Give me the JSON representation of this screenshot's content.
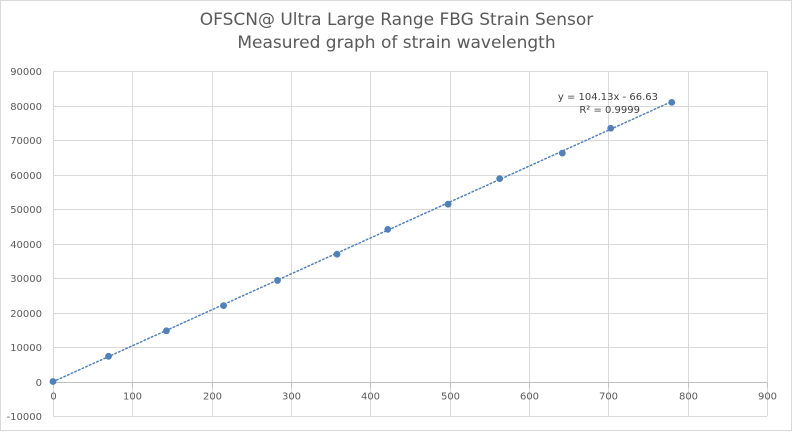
{
  "chart_data": {
    "type": "scatter",
    "title_lines": [
      "OFSCN@ Ultra Large Range FBG Strain Sensor",
      "Measured graph of strain wavelength"
    ],
    "xlabel": "",
    "ylabel": "",
    "xlim": [
      0,
      900
    ],
    "ylim": [
      -10000,
      90000
    ],
    "x_ticks": [
      0,
      100,
      200,
      300,
      400,
      500,
      600,
      700,
      800,
      900
    ],
    "y_ticks": [
      -10000,
      0,
      10000,
      20000,
      30000,
      40000,
      50000,
      60000,
      70000,
      80000,
      90000
    ],
    "grid": true,
    "legend": "none",
    "series": [
      {
        "x": [
          0,
          70,
          143,
          215,
          283,
          358,
          422,
          498,
          563,
          642,
          703,
          780
        ],
        "y": [
          0,
          7300,
          14700,
          22000,
          29300,
          36900,
          44100,
          51400,
          58800,
          66200,
          73400,
          80900
        ],
        "color": "#4f81bd"
      }
    ],
    "trendline": {
      "style": "dotted",
      "color": "#4f81bd",
      "slope": 104.13,
      "intercept": -66.63,
      "x_range": [
        0,
        780
      ],
      "equation_label": "y = 104.13x - 66.63",
      "r2_label": "R² = 0.9999"
    }
  }
}
